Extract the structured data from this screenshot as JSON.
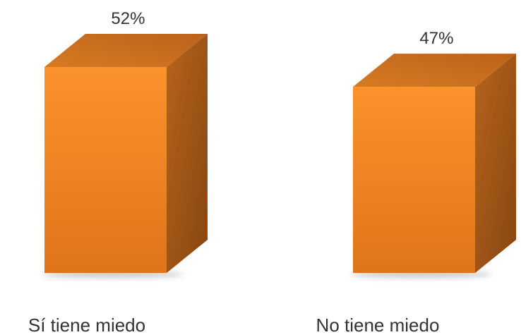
{
  "chart_data": {
    "type": "bar",
    "categories": [
      "Sí tiene miedo",
      "No tiene miedo"
    ],
    "values": [
      52,
      47
    ],
    "value_unit": "%",
    "data_labels": [
      "52%",
      "47%"
    ],
    "title": "",
    "xlabel": "",
    "ylabel": "",
    "ylim": [
      0,
      60
    ],
    "grid": false,
    "legend": "none",
    "style": "3d-column",
    "colors": {
      "front": "#f78a22",
      "side": "#a65712",
      "top": "#c86d1a",
      "shadow": "#bdbdbd"
    }
  }
}
